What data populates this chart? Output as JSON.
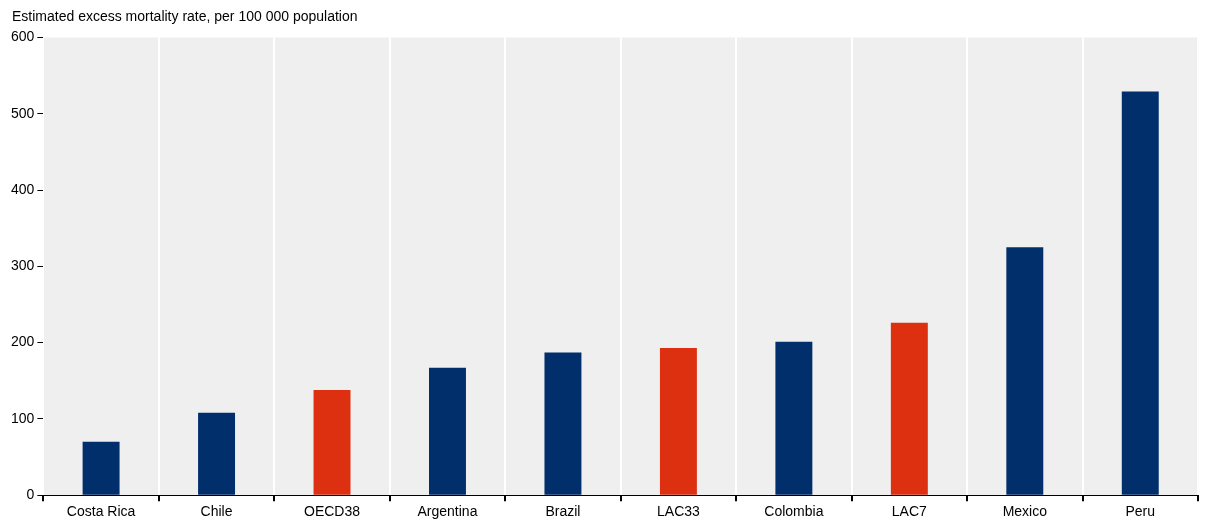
{
  "chart_data": {
    "type": "bar",
    "ylabel": "Estimated excess mortality rate, per 100 000 population",
    "categories": [
      "Costa Rica",
      "Chile",
      "OECD38",
      "Argentina",
      "Brazil",
      "LAC33",
      "Colombia",
      "LAC7",
      "Mexico",
      "Peru"
    ],
    "values": [
      70,
      108,
      138,
      167,
      187,
      193,
      201,
      226,
      325,
      529
    ],
    "colors": [
      "#002f6c",
      "#002f6c",
      "#dc3011",
      "#002f6c",
      "#002f6c",
      "#dc3011",
      "#002f6c",
      "#dc3011",
      "#002f6c",
      "#002f6c"
    ],
    "ylim": [
      0,
      600
    ],
    "yticks": [
      0,
      100,
      200,
      300,
      400,
      500,
      600
    ],
    "grid": "x"
  }
}
